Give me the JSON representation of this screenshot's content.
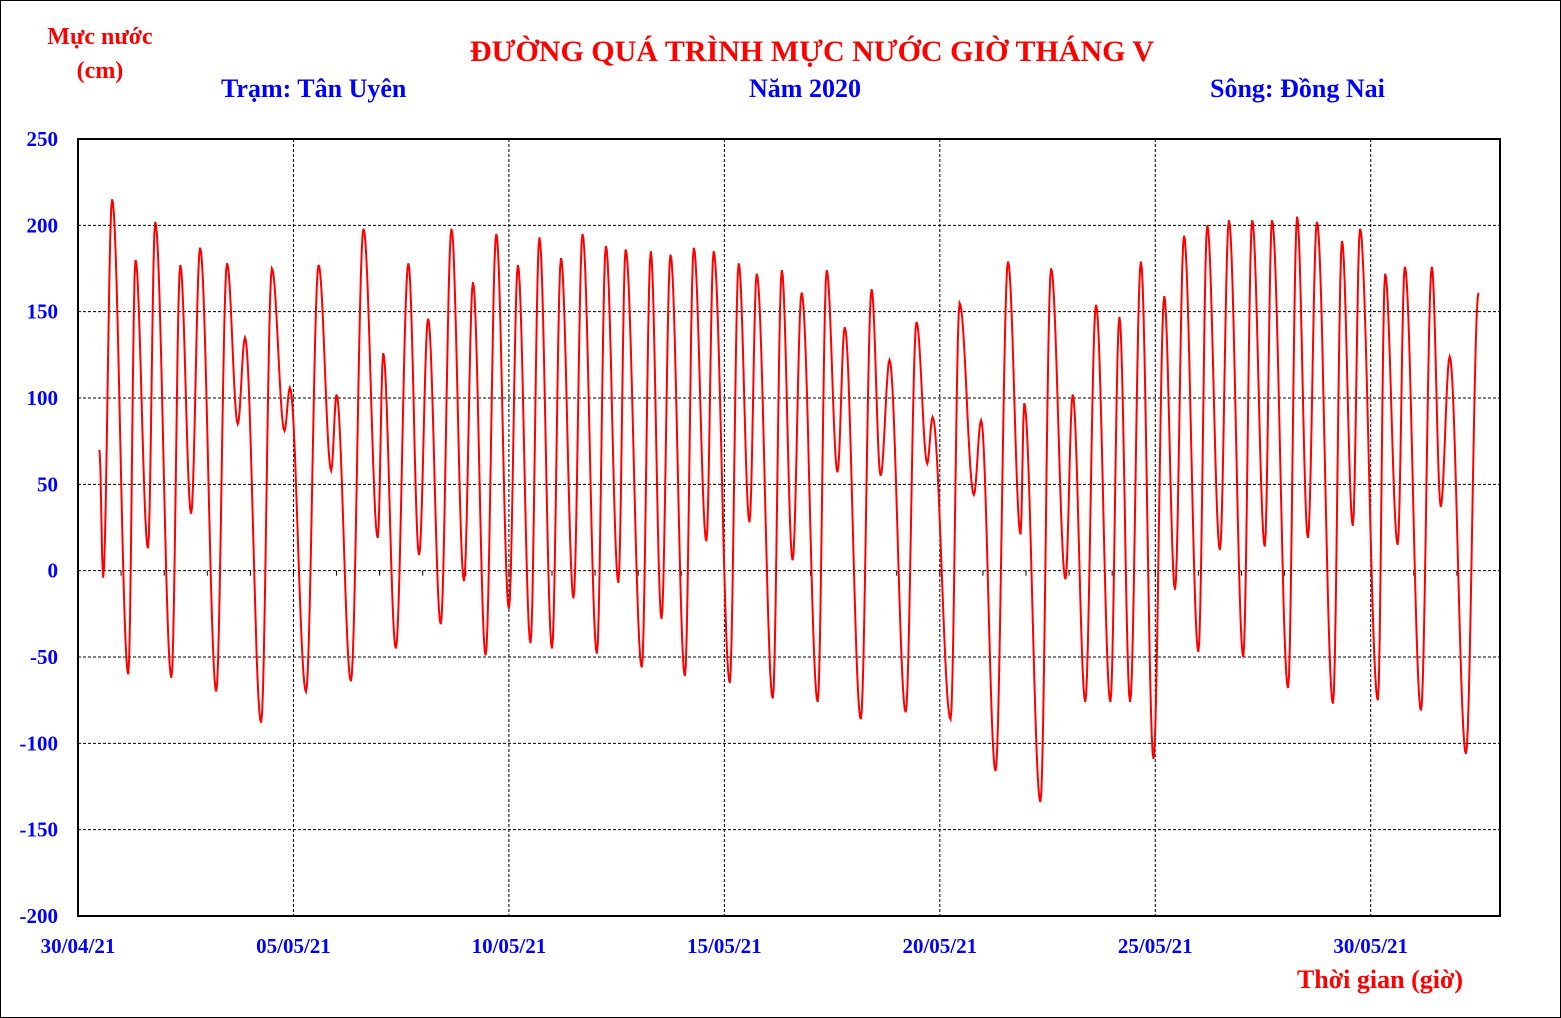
{
  "chart_data": {
    "type": "line",
    "title": "ĐƯỜNG QUÁ TRÌNH MỰC NƯỚC GIỜ THÁNG V",
    "station": "Trạm: Tân Uyên",
    "year": "Năm 2020",
    "river": "Sông: Đồng Nai",
    "ylabel_line1": "Mực nước",
    "ylabel_line2": "(cm)",
    "xlabel": "Thời gian (giờ)",
    "ylim": [
      -200,
      250
    ],
    "xlim_hours": [
      0,
      792
    ],
    "grid": true,
    "y_ticks": [
      "250",
      "200",
      "150",
      "100",
      "50",
      "0",
      "-50",
      "-100",
      "-150",
      "-200"
    ],
    "y_tick_values": [
      250,
      200,
      150,
      100,
      50,
      0,
      -50,
      -100,
      -150,
      -200
    ],
    "x_ticks": [
      "30/04/21",
      "05/05/21",
      "10/05/21",
      "15/05/21",
      "20/05/21",
      "25/05/21",
      "30/05/21"
    ],
    "x_tick_hours": [
      0,
      120,
      240,
      360,
      480,
      600,
      720
    ],
    "colors": {
      "line": "#FF0000",
      "title": "#FF0000",
      "subtitle": "#0000FF",
      "ticks": "#0000FF"
    },
    "series": [
      {
        "name": "Mực nước (cm)",
        "note": "turning points of the hourly series; [hour since 30/04/21 00:00, cm]",
        "points": [
          [
            12,
            70
          ],
          [
            14,
            -4
          ],
          [
            19,
            215
          ],
          [
            28,
            -60
          ],
          [
            32,
            180
          ],
          [
            39,
            13
          ],
          [
            43,
            202
          ],
          [
            52,
            -62
          ],
          [
            57,
            177
          ],
          [
            63,
            33
          ],
          [
            68,
            187
          ],
          [
            77,
            -70
          ],
          [
            83,
            178
          ],
          [
            89,
            85
          ],
          [
            93,
            135
          ],
          [
            102,
            -88
          ],
          [
            108,
            175
          ],
          [
            115,
            81
          ],
          [
            118,
            106
          ],
          [
            127,
            -70
          ],
          [
            134,
            177
          ],
          [
            141,
            58
          ],
          [
            144,
            102
          ],
          [
            152,
            -64
          ],
          [
            159,
            198
          ],
          [
            167,
            19
          ],
          [
            170,
            126
          ],
          [
            177,
            -45
          ],
          [
            184,
            178
          ],
          [
            190,
            9
          ],
          [
            195,
            146
          ],
          [
            202,
            -31
          ],
          [
            208,
            198
          ],
          [
            215,
            -6
          ],
          [
            220,
            167
          ],
          [
            227,
            -49
          ],
          [
            233,
            195
          ],
          [
            240,
            -22
          ],
          [
            245,
            177
          ],
          [
            252,
            -42
          ],
          [
            257,
            193
          ],
          [
            264,
            -45
          ],
          [
            269,
            181
          ],
          [
            276,
            -16
          ],
          [
            281,
            195
          ],
          [
            289,
            -48
          ],
          [
            294,
            188
          ],
          [
            301,
            -7
          ],
          [
            305,
            186
          ],
          [
            314,
            -56
          ],
          [
            319,
            185
          ],
          [
            325,
            -28
          ],
          [
            330,
            183
          ],
          [
            338,
            -61
          ],
          [
            343,
            187
          ],
          [
            350,
            17
          ],
          [
            354,
            185
          ],
          [
            363,
            -65
          ],
          [
            368,
            178
          ],
          [
            374,
            28
          ],
          [
            378,
            172
          ],
          [
            387,
            -74
          ],
          [
            392,
            174
          ],
          [
            398,
            6
          ],
          [
            403,
            161
          ],
          [
            412,
            -76
          ],
          [
            417,
            174
          ],
          [
            423,
            57
          ],
          [
            427,
            141
          ],
          [
            436,
            -86
          ],
          [
            442,
            163
          ],
          [
            447,
            55
          ],
          [
            452,
            122
          ],
          [
            461,
            -82
          ],
          [
            467,
            144
          ],
          [
            473,
            62
          ],
          [
            476,
            89
          ],
          [
            486,
            -86
          ],
          [
            491,
            155
          ],
          [
            499,
            44
          ],
          [
            503,
            87
          ],
          [
            511,
            -116
          ],
          [
            518,
            179
          ],
          [
            525,
            21
          ],
          [
            527,
            97
          ],
          [
            536,
            -134
          ],
          [
            542,
            175
          ],
          [
            550,
            -5
          ],
          [
            554,
            102
          ],
          [
            561,
            -76
          ],
          [
            567,
            154
          ],
          [
            575,
            -76
          ],
          [
            580,
            147
          ],
          [
            586,
            -76
          ],
          [
            592,
            179
          ],
          [
            599,
            -109
          ],
          [
            605,
            159
          ],
          [
            611,
            -11
          ],
          [
            616,
            194
          ],
          [
            624,
            -47
          ],
          [
            629,
            200
          ],
          [
            636,
            12
          ],
          [
            641,
            203
          ],
          [
            649,
            -50
          ],
          [
            654,
            203
          ],
          [
            661,
            14
          ],
          [
            665,
            203
          ],
          [
            674,
            -68
          ],
          [
            679,
            205
          ],
          [
            685,
            19
          ],
          [
            690,
            202
          ],
          [
            699,
            -77
          ],
          [
            704,
            191
          ],
          [
            710,
            26
          ],
          [
            714,
            198
          ],
          [
            724,
            -75
          ],
          [
            728,
            172
          ],
          [
            735,
            15
          ],
          [
            739,
            176
          ],
          [
            748,
            -81
          ],
          [
            754,
            176
          ],
          [
            759,
            37
          ],
          [
            764,
            124
          ],
          [
            773,
            -106
          ],
          [
            780,
            161
          ]
        ]
      }
    ]
  }
}
